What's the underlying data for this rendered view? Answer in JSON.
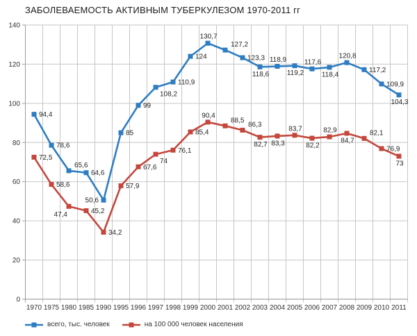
{
  "chart_data": {
    "type": "line",
    "title": "ЗАБОЛЕВАЕМОСТЬ АКТИВНЫМ ТУБЕРКУЛЕЗОМ 1970-2011 гг",
    "categories": [
      "1970",
      "1975",
      "1980",
      "1985",
      "1990",
      "1995",
      "1996",
      "1997",
      "1998",
      "1999",
      "2000",
      "2001",
      "2002",
      "2003",
      "2004",
      "2005",
      "2006",
      "2007",
      "2008",
      "2009",
      "2010",
      "2011"
    ],
    "y_axis": {
      "min": 0,
      "max": 140,
      "step": 20,
      "tick_labels": [
        "0",
        "20",
        "40",
        "60",
        "80",
        "100",
        "120",
        "140"
      ]
    },
    "grid": {
      "horizontal": true,
      "vertical": true
    },
    "legend_position": "bottom-left",
    "colors": {
      "grid": "#c6c6c6",
      "axis": "#8c8c8c",
      "y_axis_line": "#9a9a9a",
      "text": "#262626"
    },
    "series": [
      {
        "name": "всего, тыс. человек",
        "color": "#2e7dc2",
        "values": [
          94.4,
          78.6,
          65.6,
          64.6,
          50.6,
          85,
          99,
          108.2,
          110.9,
          124,
          130.7,
          127.2,
          123.3,
          118.6,
          118.9,
          119.2,
          117.6,
          118.4,
          120.8,
          117.2,
          109.9,
          104.3
        ],
        "labels": [
          "94,4",
          "78,6",
          "65,6",
          "64,6",
          "50,6",
          "85",
          "99",
          "108,2",
          "110,9",
          "124",
          "130,7",
          "127,2",
          "123,3",
          "118,6",
          "118,9",
          "119,2",
          "117,6",
          "118,4",
          "120,8",
          "117,2",
          "109,9",
          "104,3"
        ],
        "label_placement": [
          "r",
          "r",
          "ar",
          "r",
          "l",
          "r",
          "r",
          "br",
          "r",
          "r",
          "a",
          "ar",
          "r",
          "b",
          "a",
          "b",
          "a",
          "b",
          "a",
          "r",
          "r",
          "b"
        ]
      },
      {
        "name": "на 100 000 человек населения",
        "color": "#c4473d",
        "values": [
          72.5,
          58.6,
          47.4,
          45.2,
          34.2,
          57.9,
          67.6,
          74,
          76.1,
          85.4,
          90.4,
          88.5,
          86.3,
          82.7,
          83.3,
          83.7,
          82.2,
          82.9,
          84.7,
          82.1,
          76.9,
          73
        ],
        "labels": [
          "72,5",
          "58,6",
          "47,4",
          "45,2",
          "34,2",
          "57,9",
          "67,6",
          "74",
          "76,1",
          "85,4",
          "90,4",
          "88,5",
          "86,3",
          "82,7",
          "83,3",
          "83,7",
          "82,2",
          "82,9",
          "84,7",
          "82,1",
          "76,9",
          "73"
        ],
        "label_placement": [
          "r",
          "r",
          "bl",
          "r",
          "r",
          "r",
          "r",
          "br",
          "r",
          "r",
          "a",
          "ar",
          "ar",
          "b",
          "b",
          "a",
          "b",
          "a",
          "b",
          "ar",
          "r",
          "b"
        ]
      }
    ]
  }
}
